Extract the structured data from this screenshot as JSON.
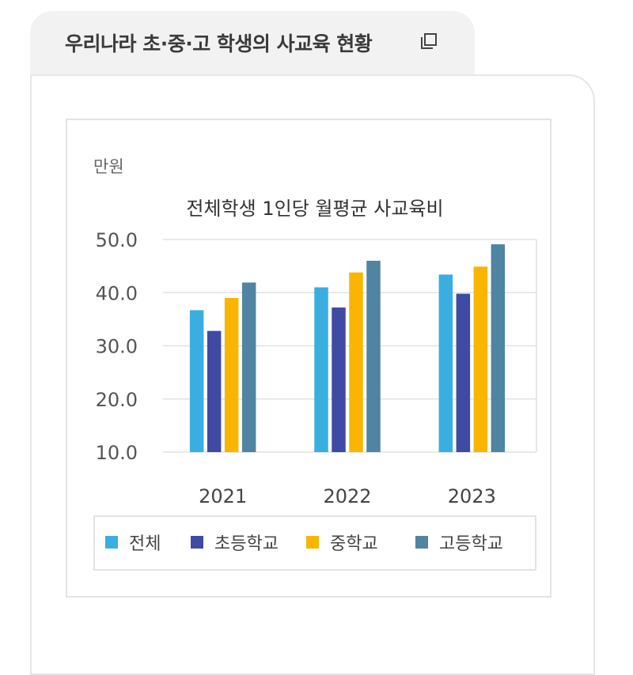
{
  "page_title": "우리나라 초·중·고 학생의 사교육 현황",
  "icons": {
    "copy": "copy-icon"
  },
  "chart_data": {
    "type": "bar",
    "title": "전체학생 1인당 월평균 사교육비",
    "ylabel": "만원",
    "xlabel": "",
    "categories": [
      "2021",
      "2022",
      "2023"
    ],
    "ylim": [
      10.0,
      50.0
    ],
    "yticks": [
      "10.0",
      "20.0",
      "30.0",
      "40.0",
      "50.0"
    ],
    "grid": true,
    "legend_position": "bottom",
    "series": [
      {
        "name": "전체",
        "color": "#3aaee0",
        "values": [
          36.7,
          41.0,
          43.4
        ]
      },
      {
        "name": "초등학교",
        "color": "#3f4aa3",
        "values": [
          32.8,
          37.2,
          39.8
        ]
      },
      {
        "name": "중학교",
        "color": "#f9b500",
        "values": [
          39.0,
          43.8,
          44.9
        ]
      },
      {
        "name": "고등학교",
        "color": "#4f85a3",
        "values": [
          41.9,
          46.0,
          49.1
        ]
      }
    ]
  }
}
